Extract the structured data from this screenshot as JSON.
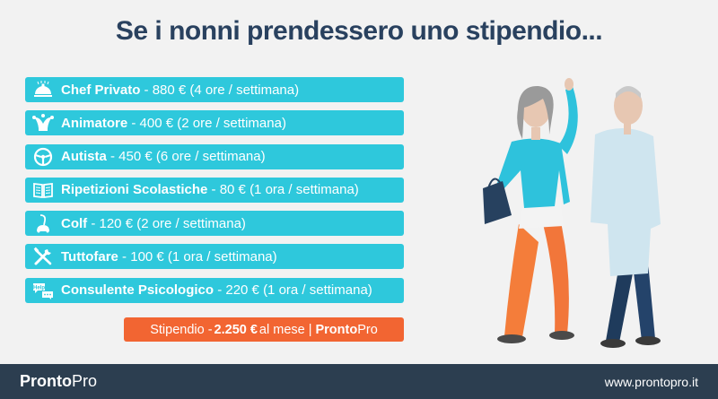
{
  "title": "Se i nonni prendessero uno stipendio...",
  "items": [
    {
      "icon": "cloche-icon",
      "name": "Chef Privato",
      "detail": " - 880 € (4 ore / settimana)"
    },
    {
      "icon": "jester-hat-icon",
      "name": "Animatore",
      "detail": " - 400 € (2 ore / settimana)"
    },
    {
      "icon": "steering-wheel-icon",
      "name": "Autista",
      "detail": " - 450 € (6 ore / settimana)"
    },
    {
      "icon": "book-icon",
      "name": "Ripetizioni Scolastiche",
      "detail": " - 80 € (1 ora / settimana)"
    },
    {
      "icon": "vacuum-cleaner-icon",
      "name": "Colf",
      "detail": " - 120 € (2 ore / settimana)"
    },
    {
      "icon": "tools-icon",
      "name": "Tuttofare",
      "detail": " - 100 € (1 ora / settimana)"
    },
    {
      "icon": "help-speech-bubble-icon",
      "name": "Consulente Psicologico",
      "detail": " - 220 € (1 ora / settimana)"
    }
  ],
  "total": {
    "prefix": "Stipendio - ",
    "amount": "2.250 €",
    "suffix": " al mese",
    "separator": "|",
    "brand_bold": "Pronto",
    "brand_regular": "Pro"
  },
  "help_bubble_text": "Help",
  "footer": {
    "logo_bold": "Pronto",
    "logo_regular": "Pro",
    "url": "www.prontopro.it"
  },
  "colors": {
    "title": "#29415f",
    "row_bg": "#2ec8dc",
    "total_bg": "#f26532",
    "footer_bg": "#2c3e50",
    "page_bg": "#f2f2f2"
  }
}
